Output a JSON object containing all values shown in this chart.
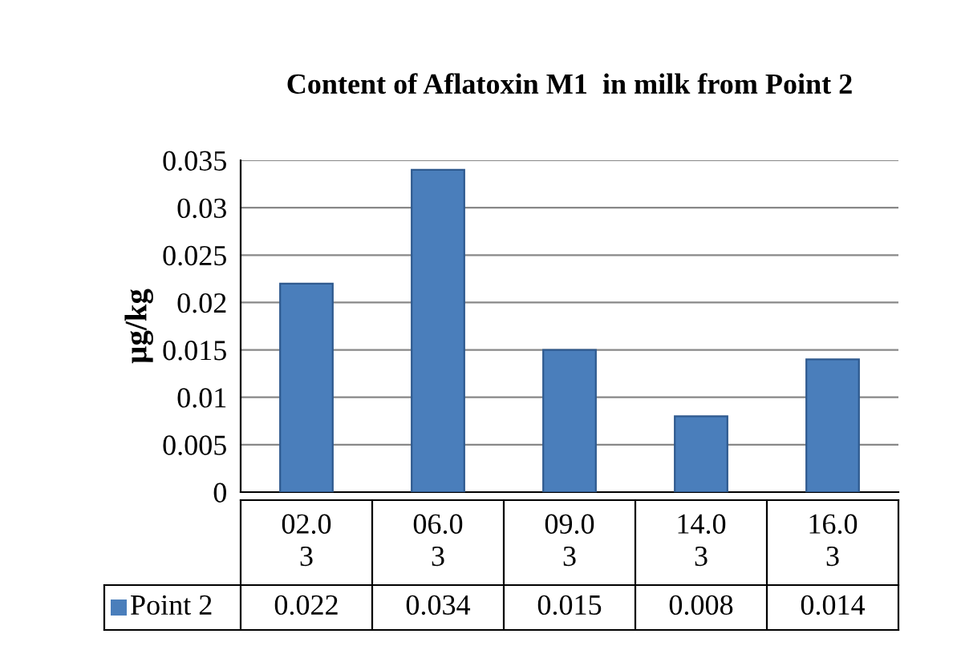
{
  "chart_data": {
    "type": "bar",
    "title": "Content of Aflatoxin M1  in milk from Point 2",
    "ylabel": "µg/kg",
    "categories": [
      "02.03",
      "06.03",
      "09.03",
      "14.03",
      "16.03"
    ],
    "series": [
      {
        "name": "Point 2",
        "color": "#4a7ebb",
        "values": [
          0.022,
          0.034,
          0.015,
          0.008,
          0.014
        ]
      }
    ],
    "ylim": [
      0,
      0.035
    ],
    "yticks": [
      0,
      0.005,
      0.01,
      0.015,
      0.02,
      0.025,
      0.03,
      0.035
    ],
    "grid": "y",
    "data_labels": true,
    "legend": "bottom"
  }
}
